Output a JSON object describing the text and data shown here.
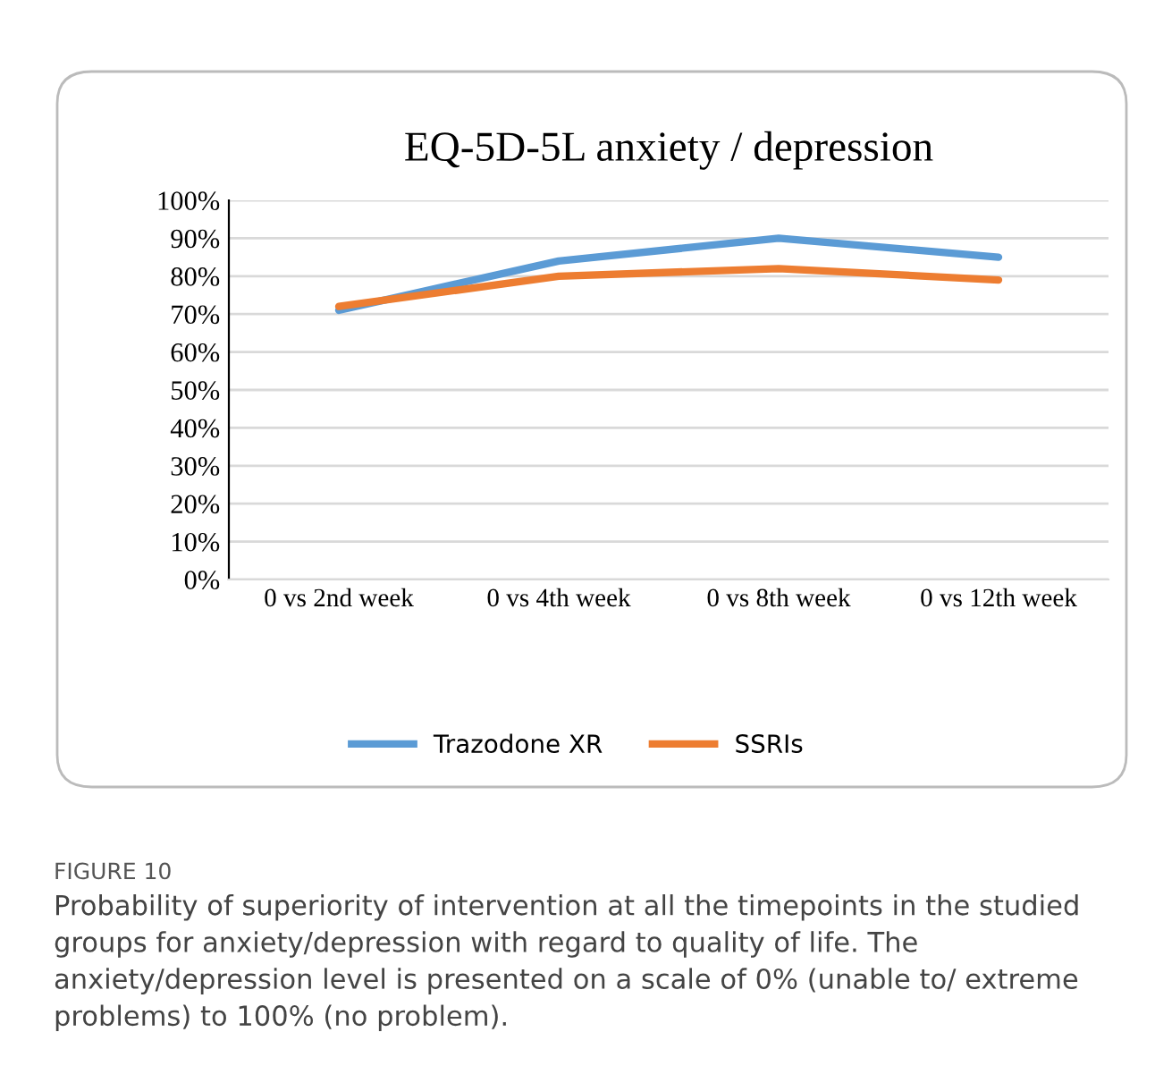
{
  "chart_data": {
    "type": "line",
    "title": "EQ-5D-5L anxiety / depression",
    "categories": [
      "0 vs 2nd week",
      "0 vs 4th week",
      "0 vs 8th week",
      "0 vs 12th week"
    ],
    "series": [
      {
        "name": "Trazodone XR",
        "color": "#5b9bd5",
        "values": [
          71,
          84,
          90,
          85
        ]
      },
      {
        "name": "SSRIs",
        "color": "#ed7d31",
        "values": [
          72,
          80,
          82,
          79
        ]
      }
    ],
    "ylim": [
      0,
      100
    ],
    "yticks": [
      {
        "value": 0,
        "label": "0%"
      },
      {
        "value": 10,
        "label": "10%"
      },
      {
        "value": 20,
        "label": "20%"
      },
      {
        "value": 30,
        "label": "30%"
      },
      {
        "value": 40,
        "label": "40%"
      },
      {
        "value": 50,
        "label": "50%"
      },
      {
        "value": 60,
        "label": "60%"
      },
      {
        "value": 70,
        "label": "70%"
      },
      {
        "value": 80,
        "label": "80%"
      },
      {
        "value": 90,
        "label": "90%"
      },
      {
        "value": 100,
        "label": "100%"
      }
    ],
    "grid": "y",
    "legend": "bottom",
    "marker": "none",
    "line_style": "solid",
    "annotations": [
      "FIGURE 10",
      "Probability of superiority of intervention at all the timepoints in the studied groups for anxiety/depression with regard to quality of life. The anxiety/depression level is presented on a scale of 0% (unable to/ extreme problems) to 100% (no problem)."
    ]
  }
}
